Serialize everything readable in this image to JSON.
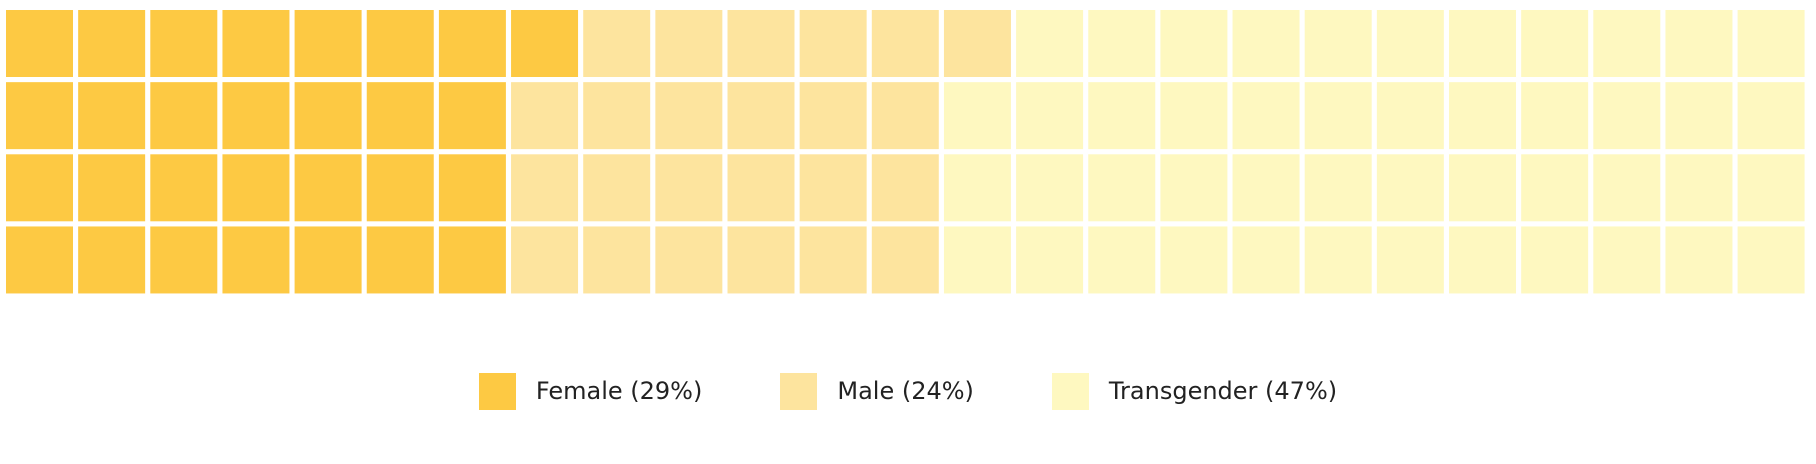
{
  "chart_data": {
    "type": "waffle",
    "title": "",
    "total_cells": 100,
    "grid": {
      "rows": 4,
      "columns": 25,
      "fill_order": "column-major"
    },
    "series": [
      {
        "name": "Female (29%)",
        "value": 29,
        "color": "#fdc943"
      },
      {
        "name": "Male (24%)",
        "value": 24,
        "color": "#fde49e"
      },
      {
        "name": "Transgender (47%)",
        "value": 47,
        "color": "#fef8c0"
      }
    ],
    "legend_position": "bottom-center"
  }
}
